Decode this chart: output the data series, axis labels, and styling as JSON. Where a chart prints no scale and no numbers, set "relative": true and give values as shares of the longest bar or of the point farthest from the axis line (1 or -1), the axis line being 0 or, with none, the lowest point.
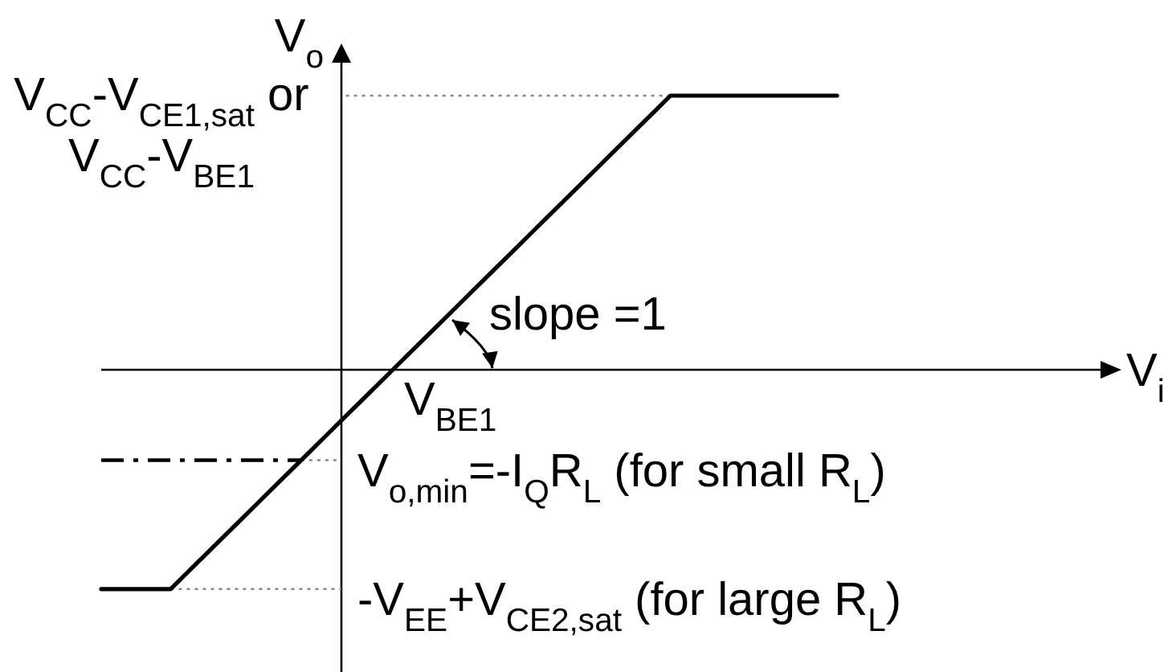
{
  "chart_data": {
    "type": "line",
    "relative": true,
    "ylabel": "V$_{o}$",
    "categories": [
      null,
      null,
      null,
      null,
      null,
      null,
      null,
      null,
      null,
      null,
      null,
      null,
      null,
      null,
      null,
      null,
      null,
      null,
      null,
      null,
      null,
      null,
      null,
      null,
      null,
      null,
      null,
      null,
      null,
      null,
      null,
      null,
      null,
      null,
      null,
      null,
      null,
      null,
      null,
      null,
      null,
      null,
      null,
      null,
      null,
      null,
      null,
      null,
      null,
      null,
      null,
      null,
      null,
      null
    ],
    "color": "#000000",
    "values": [
      -0.8,
      -0.8,
      -0.8,
      -0.8,
      -0.8,
      -0.8,
      -0.75,
      -0.7,
      -0.65,
      -0.6,
      -0.55,
      -0.5,
      -0.45,
      -0.4,
      -0.35,
      -0.3,
      -0.25,
      -0.2,
      -0.15,
      -0.1,
      -0.05,
      0,
      0.05,
      0.1,
      0.15,
      0.2,
      0.25,
      0.3,
      0.35,
      0.4,
      0.45,
      0.5,
      0.55,
      0.6,
      0.65,
      0.7,
      0.75,
      0.8,
      0.85,
      0.9,
      0.95,
      1,
      1,
      1,
      1,
      1,
      1,
      1,
      1,
      1,
      1,
      1,
      1,
      1
    ],
    "ref_lines": [
      {
        "axis": "y",
        "value": 1,
        "label": "V$_{CC}$-V$_{CE1,sat}$ or\nV$_{CC}$-V$_{BE1}$",
        "line_style": "dotted",
        "color": "#888888"
      },
      {
        "axis": "y",
        "value": -0.33,
        "label": "V$_{o,min}$=-I$_{Q}$R$_{L}$ (for small R$_{L}$)",
        "line_style": "dashdot",
        "color": "#000000"
      },
      {
        "axis": "y",
        "value": -0.8,
        "label": "-V$_{EE}$+V$_{CE2,sat}$ (for large R$_{L}$)",
        "line_style": "dotted",
        "color": "#888888"
      }
    ],
    "annotations": [
      "slope =1",
      "V$_{BE1}$",
      "V$_{i}$"
    ]
  }
}
